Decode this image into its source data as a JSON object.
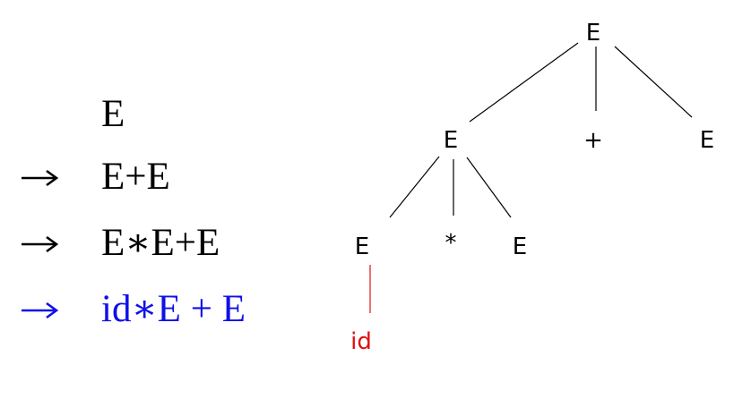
{
  "colors": {
    "default": "#000000",
    "highlight_step": "#1010e8",
    "leaf": "#e01010"
  },
  "derivation": {
    "steps": [
      {
        "arrow": "",
        "sentence": "E",
        "highlight": false
      },
      {
        "arrow": "→",
        "sentence": "E+E",
        "highlight": false
      },
      {
        "arrow": "→",
        "sentence": "E∗E+E",
        "highlight": false
      },
      {
        "arrow": "→",
        "sentence": "id∗E + E",
        "highlight": true
      }
    ]
  },
  "parse_tree": {
    "nodes": {
      "root": {
        "label": "E"
      },
      "left": {
        "label": "E"
      },
      "plus": {
        "label": "+"
      },
      "right": {
        "label": "E"
      },
      "ll": {
        "label": "E"
      },
      "star": {
        "label": "*"
      },
      "lr": {
        "label": "E"
      },
      "id": {
        "label": "id",
        "color_key": "leaf"
      }
    },
    "edges": [
      [
        "root",
        "left"
      ],
      [
        "root",
        "plus"
      ],
      [
        "root",
        "right"
      ],
      [
        "left",
        "ll"
      ],
      [
        "left",
        "star"
      ],
      [
        "left",
        "lr"
      ],
      [
        "ll",
        "id"
      ]
    ]
  }
}
